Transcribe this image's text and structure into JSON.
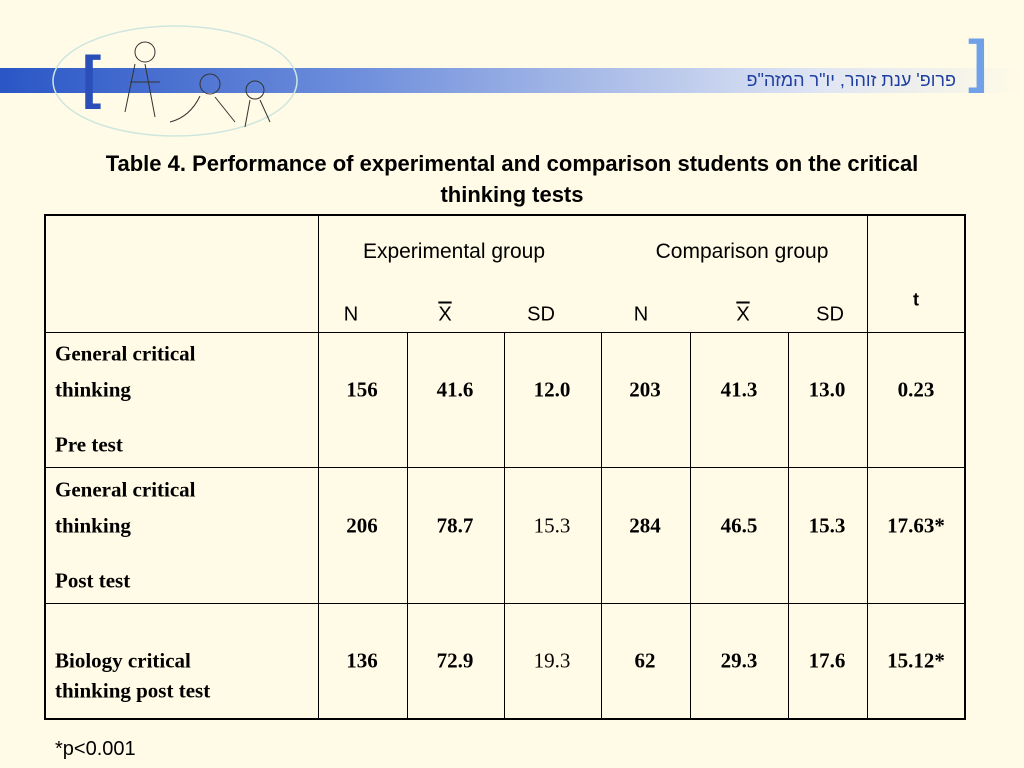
{
  "header": {
    "author": "פרופ' ענת זוהר, יו\"ר המזה\"פ"
  },
  "title": "Table 4. Performance of experimental and comparison students on the critical thinking tests",
  "table": {
    "groups": [
      "Experimental group",
      "Comparison group"
    ],
    "subheaders": [
      "N",
      "X",
      "SD",
      "N",
      "X",
      "SD"
    ],
    "t_header": "t",
    "rows": [
      {
        "label": [
          "General critical",
          "thinking",
          "Pre test"
        ],
        "values": [
          "156",
          "41.6",
          "12.0",
          "203",
          "41.3",
          "13.0",
          "0.23"
        ]
      },
      {
        "label": [
          "General critical",
          "thinking",
          "Post test"
        ],
        "values": [
          "206",
          "78.7",
          "15.3",
          "284",
          "46.5",
          "15.3",
          "17.63*"
        ]
      },
      {
        "label": [
          "Biology critical",
          "thinking post test"
        ],
        "values": [
          "136",
          "72.9",
          "19.3",
          "62",
          "29.3",
          "17.6",
          "15.12*"
        ]
      }
    ]
  },
  "footnote": "*p<0.001"
}
